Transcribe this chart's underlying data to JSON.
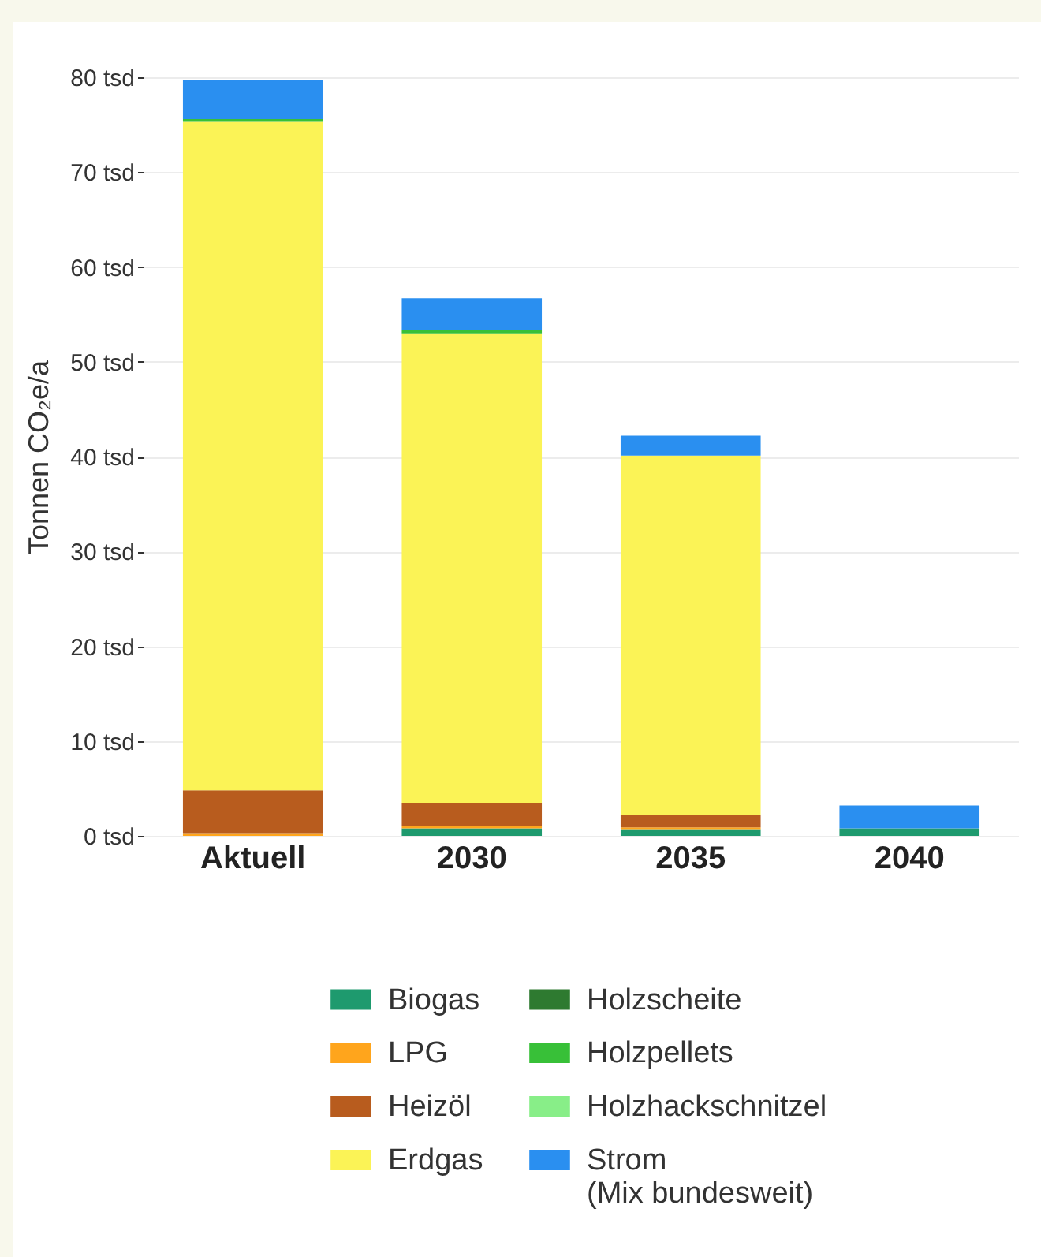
{
  "chart_data": {
    "type": "bar",
    "stacked": true,
    "ylabel": "Tonnen CO₂e/a",
    "categories": [
      "Aktuell",
      "2030",
      "2035",
      "2040"
    ],
    "series": [
      {
        "name": "Biogas",
        "color": "#1e9a6e",
        "values": [
          0,
          0.8,
          0.7,
          0.8
        ]
      },
      {
        "name": "LPG",
        "color": "#ffa51c",
        "values": [
          0.3,
          0.2,
          0.2,
          0
        ]
      },
      {
        "name": "Heizöl",
        "color": "#b85c1e",
        "values": [
          4.5,
          2.5,
          1.3,
          0
        ]
      },
      {
        "name": "Erdgas",
        "color": "#fbf356",
        "values": [
          70.5,
          49.5,
          37.9,
          0
        ]
      },
      {
        "name": "Holzscheite",
        "color": "#2e7a30",
        "values": [
          0,
          0,
          0,
          0
        ]
      },
      {
        "name": "Holzpellets",
        "color": "#38c038",
        "values": [
          0.3,
          0.3,
          0,
          0
        ]
      },
      {
        "name": "Holzhackschnitzel",
        "color": "#88ee88",
        "values": [
          0,
          0,
          0,
          0
        ]
      },
      {
        "name": "Strom (Mix bundesweit)",
        "color": "#2a8ff0",
        "values": [
          4.1,
          3.4,
          2.1,
          2.4
        ]
      }
    ],
    "ylim": [
      0,
      80
    ],
    "yticks": [
      {
        "value": 0,
        "label": "0 tsd"
      },
      {
        "value": 10,
        "label": "10 tsd"
      },
      {
        "value": 20,
        "label": "20 tsd"
      },
      {
        "value": 30,
        "label": "30 tsd"
      },
      {
        "value": 40,
        "label": "40 tsd"
      },
      {
        "value": 50,
        "label": "50 tsd"
      },
      {
        "value": 60,
        "label": "60 tsd"
      },
      {
        "value": 70,
        "label": "70 tsd"
      },
      {
        "value": 80,
        "label": "80 tsd"
      }
    ],
    "grid": "y",
    "legend": "bottom"
  }
}
